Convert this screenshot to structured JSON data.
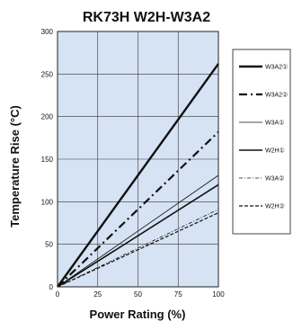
{
  "chart_data": {
    "type": "line",
    "title": "RK73H W2H-W3A2",
    "xlabel": "Power Rating (%)",
    "ylabel": "Temperature Rise (°C)",
    "xlim": [
      0,
      100
    ],
    "ylim": [
      0,
      300
    ],
    "x_ticks": [
      "0",
      "25",
      "50",
      "75",
      "100"
    ],
    "y_ticks": [
      "0",
      "50",
      "100",
      "150",
      "200",
      "250",
      "300"
    ],
    "grid": true,
    "background_color": "#d6e3f4",
    "legend_position": "right",
    "series": [
      {
        "name": "W3A2①",
        "style": "thick-solid",
        "x": [
          0,
          100
        ],
        "y": [
          0,
          262
        ]
      },
      {
        "name": "W3A2②",
        "style": "dash-dot",
        "x": [
          0,
          100
        ],
        "y": [
          0,
          182
        ]
      },
      {
        "name": "W3A①",
        "style": "thin-solid",
        "x": [
          0,
          100
        ],
        "y": [
          0,
          131
        ]
      },
      {
        "name": "W2H①",
        "style": "medium-solid",
        "x": [
          0,
          100
        ],
        "y": [
          0,
          120
        ]
      },
      {
        "name": "W3A②",
        "style": "thin-dash-dot",
        "x": [
          0,
          100
        ],
        "y": [
          0,
          91
        ]
      },
      {
        "name": "W2H②",
        "style": "dashed",
        "x": [
          0,
          100
        ],
        "y": [
          0,
          87
        ]
      }
    ]
  }
}
